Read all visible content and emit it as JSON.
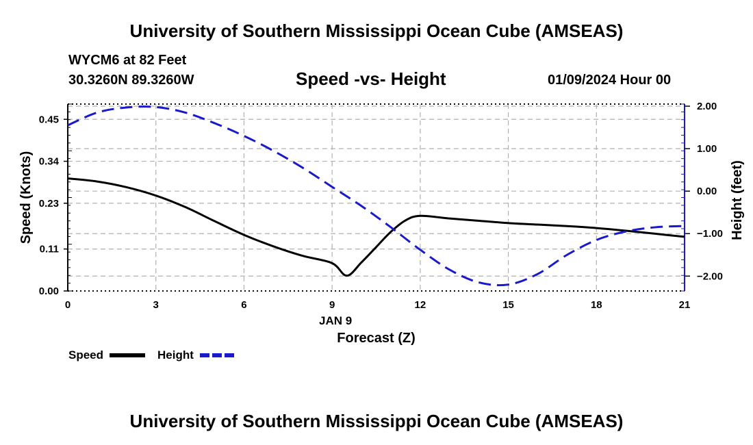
{
  "header": {
    "title": "University of Southern Mississippi Ocean Cube (AMSEAS)",
    "station": "WYCM6 at 82 Feet",
    "coords": "30.3260N  89.3260W",
    "subtitle": "Speed -vs- Height",
    "datetime": "01/09/2024 Hour 00"
  },
  "footer": {
    "title": "University of Southern Mississippi Ocean Cube (AMSEAS)"
  },
  "legend": {
    "speed_label": "Speed",
    "height_label": "Height"
  },
  "colors": {
    "speed": "#000000",
    "height": "#1a1acc",
    "grid": "#b0b0b0"
  },
  "chart_data": {
    "type": "line",
    "xlabel": "Forecast (Z)",
    "date_label": "JAN 9",
    "xlim": [
      0,
      21
    ],
    "xticks": [
      0,
      3,
      6,
      9,
      12,
      15,
      18,
      21
    ],
    "xtick_labels": [
      "0",
      "3",
      "6",
      "9",
      "12",
      "15",
      "18",
      "21"
    ],
    "ylabel": "Speed (Knots)",
    "ylim": [
      0,
      0.49
    ],
    "yticks": [
      0.0,
      0.11,
      0.23,
      0.34,
      0.45
    ],
    "ytick_labels": [
      "0.00",
      "0.11",
      "0.23",
      "0.34",
      "0.45"
    ],
    "y2label": "Height (feet)",
    "y2lim": [
      -2.35,
      2.05
    ],
    "y2ticks": [
      -2.0,
      -1.0,
      0.0,
      1.0,
      2.0
    ],
    "y2tick_labels": [
      "−2.00",
      "−1.00",
      "0.00",
      "1.00",
      "2.00"
    ],
    "grid": true,
    "series": [
      {
        "name": "Speed",
        "axis": "left",
        "style": "solid",
        "x": [
          0,
          1,
          2,
          3,
          4,
          5,
          6,
          7,
          8,
          9,
          9.5,
          10,
          10.5,
          11,
          11.5,
          12,
          13,
          14,
          15,
          16,
          17,
          18,
          19,
          20,
          21
        ],
        "y": [
          0.295,
          0.287,
          0.272,
          0.25,
          0.22,
          0.183,
          0.147,
          0.117,
          0.092,
          0.073,
          0.04,
          0.075,
          0.115,
          0.155,
          0.185,
          0.197,
          0.19,
          0.184,
          0.178,
          0.174,
          0.17,
          0.165,
          0.158,
          0.15,
          0.142
        ]
      },
      {
        "name": "Height",
        "axis": "right",
        "style": "dashed",
        "x": [
          0,
          1,
          2,
          3,
          4,
          5,
          6,
          7,
          8,
          9,
          10,
          11,
          12,
          13,
          14,
          15,
          16,
          17,
          18,
          19,
          20,
          21
        ],
        "y": [
          1.55,
          1.85,
          1.97,
          1.98,
          1.85,
          1.6,
          1.3,
          0.95,
          0.55,
          0.1,
          -0.35,
          -0.85,
          -1.38,
          -1.85,
          -2.15,
          -2.2,
          -1.95,
          -1.5,
          -1.15,
          -0.95,
          -0.85,
          -0.82
        ]
      }
    ]
  }
}
